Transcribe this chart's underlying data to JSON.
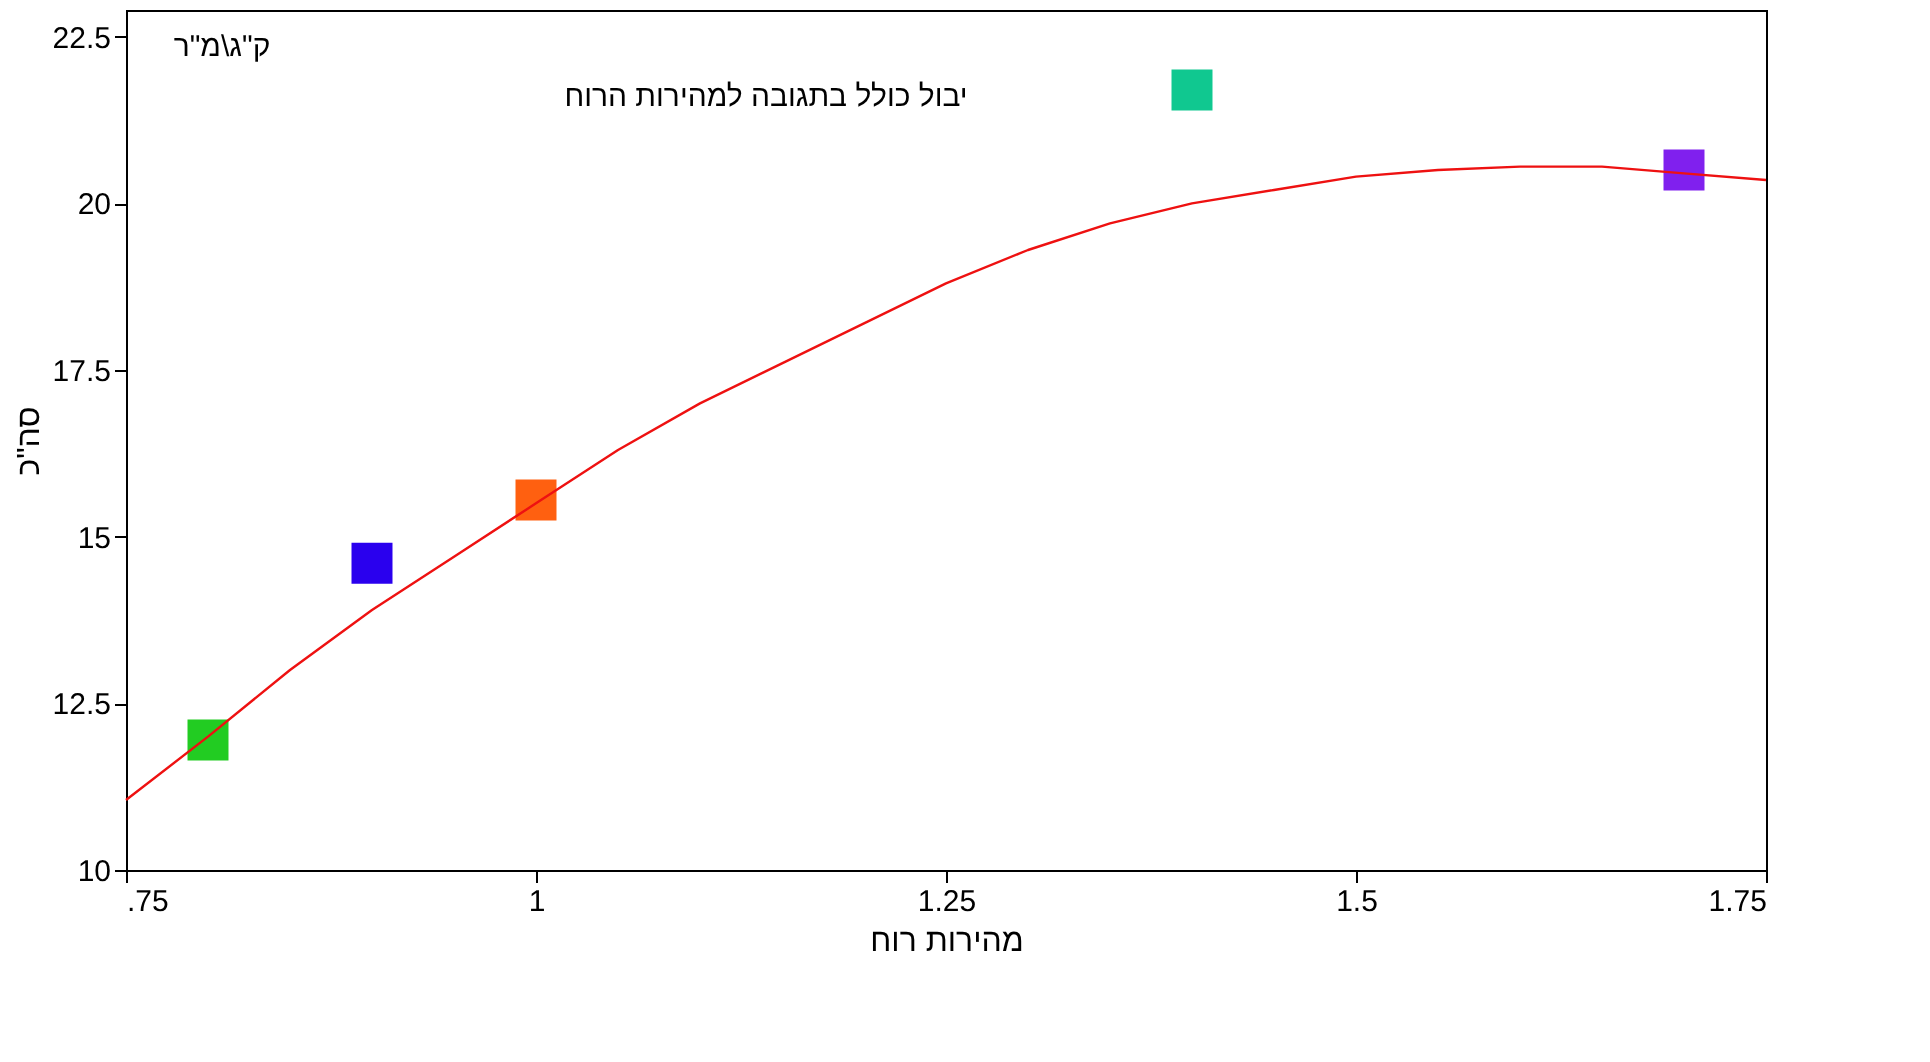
{
  "chart_data": {
    "type": "scatter",
    "title": "יבול כולל בתגובה למהירות הרוח",
    "xlabel": "מהירות רוח",
    "ylabel": "סה\"כ",
    "annotations": [
      "ק\"ג\\מ\"ר"
    ],
    "xlim": [
      0.75,
      1.75
    ],
    "xticks": [
      {
        "value": 0.75,
        "label": ".75"
      },
      1,
      1.25,
      1.5,
      1.75
    ],
    "ylim": [
      10,
      22.9
    ],
    "yticks": [
      10,
      12.5,
      15,
      17.5,
      20,
      22.5
    ],
    "grid": false,
    "marker": "square",
    "series": [
      {
        "x": [
          0.8,
          0.9,
          1.0,
          1.4,
          1.7
        ],
        "values": [
          11.95,
          14.6,
          15.55,
          21.7,
          20.5
        ],
        "colors": [
          "#22cc22",
          "#2a00ee",
          "#ff6010",
          "#10c890",
          "#8020ee"
        ]
      },
      {
        "type": "line",
        "color": "#ee1111",
        "marker": "none",
        "line_style": "solid",
        "x": [
          0.75,
          0.8,
          0.85,
          0.9,
          0.95,
          1.0,
          1.05,
          1.1,
          1.15,
          1.2,
          1.25,
          1.3,
          1.35,
          1.4,
          1.45,
          1.5,
          1.55,
          1.6,
          1.65,
          1.7,
          1.75
        ],
        "values": [
          11.05,
          12.0,
          13.0,
          13.9,
          14.7,
          15.5,
          16.3,
          17.0,
          17.6,
          18.2,
          18.8,
          19.3,
          19.7,
          20.0,
          20.2,
          20.4,
          20.5,
          20.55,
          20.55,
          20.45,
          20.35
        ]
      }
    ]
  }
}
